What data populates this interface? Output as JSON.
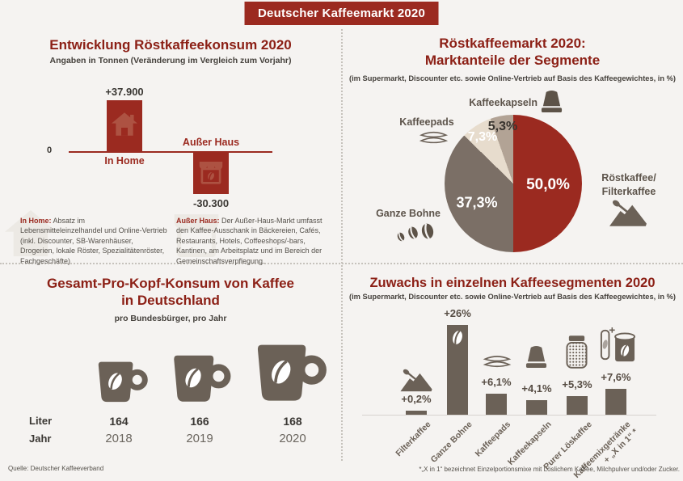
{
  "banner": {
    "title": "Deutscher Kaffeemarkt 2020"
  },
  "source": "Quelle: Deutscher Kaffeeverband",
  "colors": {
    "accent_red": "#9b2a20",
    "heading_red": "#8c2016",
    "brown": "#6b6157",
    "pie_gray": "#7b6f66",
    "pie_beige": "#e7dccd",
    "pie_taupe": "#b2a395",
    "background": "#f5f3f1"
  },
  "sections": {
    "consumption": {
      "title": "Entwicklung Röstkaffeekonsum 2020",
      "subtitle": "Angaben in Tonnen (Veränderung im Vergleich zum Vorjahr)",
      "zero_label": "0",
      "bar_labels": [
        "In Home",
        "Außer Haus"
      ],
      "value_labels": [
        "+37.900",
        "-30.300"
      ],
      "footnotes": [
        {
          "lead": "In Home:",
          "text": " Absatz im Lebensmitteleinzelhandel und Online-Vertrieb (inkl. Discounter, SB-Warenhäuser, Drogerien, lokale Röster, Spezialitätenröster, Fachgeschäfte)"
        },
        {
          "lead": "Außer Haus:",
          "text": " Der Außer-Haus-Markt umfasst den Kaffee-Ausschank in Bäckereien, Cafés, Restaurants, Hotels, Coffeeshops/-bars, Kantinen, am Arbeitsplatz und im Bereich der Gemeinschaftsverpflegung."
        }
      ]
    },
    "market_share": {
      "title_lines": [
        "Röstkaffeemarkt 2020:",
        "Marktanteile der Segmente"
      ],
      "subtitle": "(im Supermarkt, Discounter etc. sowie Online-Vertrieb auf Basis des Kaffeegewichtes, in %)",
      "labels": {
        "kapseln": "Kaffeekapseln",
        "pads": "Kaffeepads",
        "bohne": "Ganze Bohne",
        "roest": "Röstkaffee/\nFilterkaffee"
      },
      "pct": {
        "roest": "50,0%",
        "bohne": "37,3%",
        "pads": "7,3%",
        "kapseln": "5,3%"
      }
    },
    "per_capita": {
      "title_lines": [
        "Gesamt-Pro-Kopf-Konsum von Kaffee",
        "in Deutschland"
      ],
      "subtitle": "pro Bundesbürger, pro Jahr",
      "row_labels": [
        "Liter",
        "Jahr"
      ],
      "liters": [
        "164",
        "166",
        "168"
      ],
      "years": [
        "2018",
        "2019",
        "2020"
      ]
    },
    "growth": {
      "title": "Zuwachs in einzelnen Kaffeesegmenten 2020",
      "subtitle": "(im Supermarkt, Discounter etc. sowie Online-Vertrieb auf Basis des Kaffeegewichtes, in %)",
      "value_labels": [
        "+0,2%",
        "+26%",
        "+6,1%",
        "+4,1%",
        "+5,3%",
        "+7,6%"
      ],
      "categories": [
        "Filterkaffee",
        "Ganze Bohne",
        "Kaffeepads",
        "Kaffeekapseln",
        "Purer Löskaffee",
        "Kaffeemixgetränke\n+ „X in 1“ *"
      ],
      "footnote": "*„X in 1“ bezeichnet Einzelportionsmixe mit Löslichem Kaffee, Milchpulver und/oder Zucker."
    }
  },
  "chart_data": [
    {
      "type": "bar",
      "title": "Entwicklung Röstkaffeekonsum 2020",
      "subtitle": "Angaben in Tonnen (Veränderung im Vergleich zum Vorjahr)",
      "categories": [
        "In Home",
        "Außer Haus"
      ],
      "values": [
        37900,
        -30300
      ],
      "value_labels": [
        "+37.900",
        "-30.300"
      ],
      "unit": "Tonnen",
      "baseline": 0
    },
    {
      "type": "pie",
      "title": "Röstkaffeemarkt 2020: Marktanteile der Segmente",
      "subtitle": "(im Supermarkt, Discounter etc. sowie Online-Vertrieb auf Basis des Kaffeegewichtes, in %)",
      "unit": "%",
      "start_angle_deg": 0,
      "direction": "clockwise",
      "segments": [
        {
          "label": "Röstkaffee/Filterkaffee",
          "value": 50.0,
          "display": "50,0%",
          "color": "#9b2a20"
        },
        {
          "label": "Ganze Bohne",
          "value": 37.3,
          "display": "37,3%",
          "color": "#7b6f66"
        },
        {
          "label": "Kaffeepads",
          "value": 7.3,
          "display": "7,3%",
          "color": "#e7dccd"
        },
        {
          "label": "Kaffeekapseln",
          "value": 5.3,
          "display": "5,3%",
          "color": "#b2a395"
        }
      ]
    },
    {
      "type": "pictogram",
      "title": "Gesamt-Pro-Kopf-Konsum von Kaffee in Deutschland",
      "subtitle": "pro Bundesbürger, pro Jahr",
      "categories": [
        "2018",
        "2019",
        "2020"
      ],
      "values": [
        164,
        166,
        168
      ],
      "unit": "Liter"
    },
    {
      "type": "bar",
      "title": "Zuwachs in einzelnen Kaffeesegmenten 2020",
      "subtitle": "(im Supermarkt, Discounter etc. sowie Online-Vertrieb auf Basis des Kaffeegewichtes, in %)",
      "categories": [
        "Filterkaffee",
        "Ganze Bohne",
        "Kaffeepads",
        "Kaffeekapseln",
        "Purer Löskaffee",
        "Kaffeemixgetränke + „X in 1“"
      ],
      "values": [
        0.2,
        26,
        6.1,
        4.1,
        5.3,
        7.6
      ],
      "value_labels": [
        "+0,2%",
        "+26%",
        "+6,1%",
        "+4,1%",
        "+5,3%",
        "+7,6%"
      ],
      "unit": "%",
      "ylim": [
        0,
        26
      ]
    }
  ]
}
